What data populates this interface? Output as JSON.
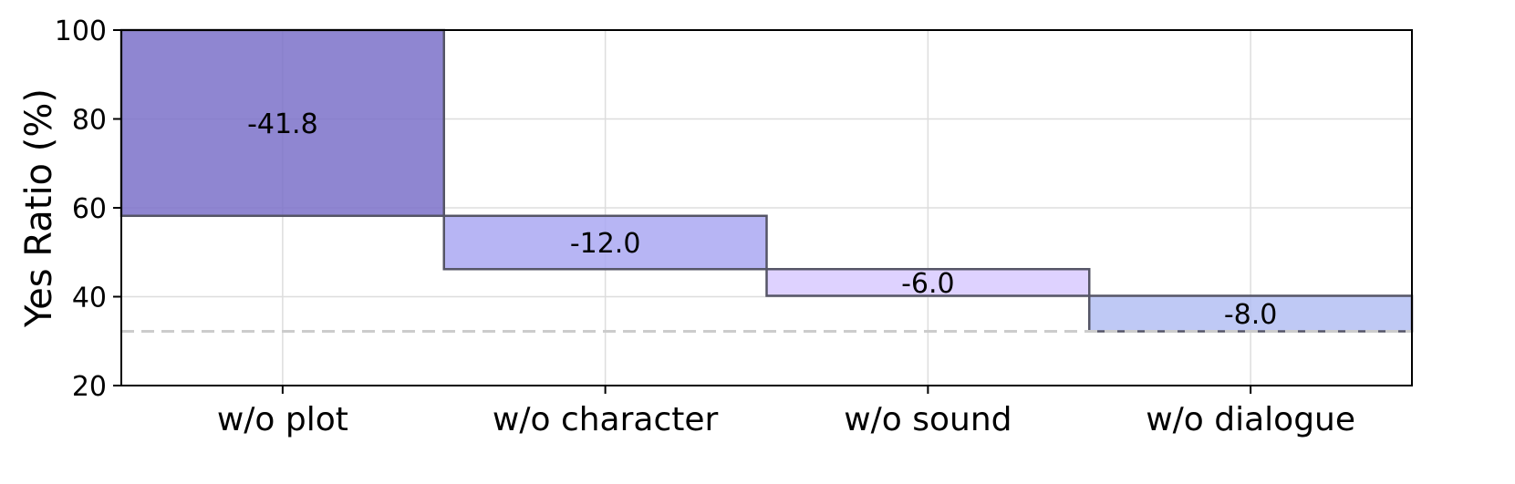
{
  "chart_data": {
    "type": "bar",
    "subtype": "waterfall",
    "ylabel": "Yes Ratio (%)",
    "ylim": [
      20,
      100
    ],
    "yticks": [
      20,
      40,
      60,
      80,
      100
    ],
    "grid": true,
    "categories": [
      "w/o plot",
      "w/o character",
      "w/o sound",
      "w/o dialogue"
    ],
    "start": 100,
    "values": [
      -41.8,
      -12.0,
      -6.0,
      -8.0
    ],
    "labels": [
      "-41.8",
      "-12.0",
      "-6.0",
      "-8.0"
    ],
    "colors": [
      "#7b71c9",
      "#aaa8f2",
      "#d8caff",
      "#b4c0f3"
    ],
    "baseline": 32.2
  }
}
